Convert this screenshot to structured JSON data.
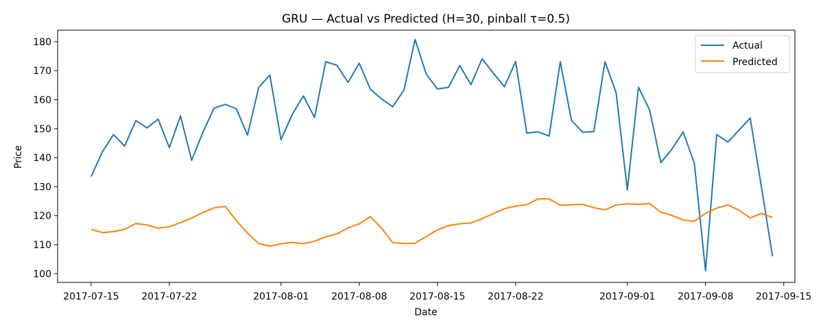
{
  "chart_data": {
    "type": "line",
    "title": "GRU — Actual vs Predicted (H=30, pinball τ=0.5)",
    "xlabel": "Date",
    "ylabel": "Price",
    "x_start": "2017-07-15",
    "x": [
      "2017-07-15",
      "2017-07-16",
      "2017-07-17",
      "2017-07-18",
      "2017-07-19",
      "2017-07-20",
      "2017-07-21",
      "2017-07-22",
      "2017-07-23",
      "2017-07-24",
      "2017-07-25",
      "2017-07-26",
      "2017-07-27",
      "2017-07-28",
      "2017-07-29",
      "2017-07-30",
      "2017-07-31",
      "2017-08-01",
      "2017-08-02",
      "2017-08-03",
      "2017-08-04",
      "2017-08-05",
      "2017-08-06",
      "2017-08-07",
      "2017-08-08",
      "2017-08-09",
      "2017-08-10",
      "2017-08-11",
      "2017-08-12",
      "2017-08-13",
      "2017-08-14",
      "2017-08-15",
      "2017-08-16",
      "2017-08-17",
      "2017-08-18",
      "2017-08-19",
      "2017-08-20",
      "2017-08-21",
      "2017-08-22",
      "2017-08-23",
      "2017-08-24",
      "2017-08-25",
      "2017-08-26",
      "2017-08-27",
      "2017-08-28",
      "2017-08-29",
      "2017-08-30",
      "2017-08-31",
      "2017-09-01",
      "2017-09-02",
      "2017-09-03",
      "2017-09-04",
      "2017-09-05",
      "2017-09-06",
      "2017-09-07",
      "2017-09-08",
      "2017-09-09",
      "2017-09-10",
      "2017-09-11",
      "2017-09-12",
      "2017-09-13",
      "2017-09-14"
    ],
    "series": [
      {
        "name": "Actual",
        "color": "#1f77b4",
        "values": [
          133.5,
          142.0,
          148.0,
          144.0,
          152.8,
          150.3,
          153.3,
          143.5,
          154.4,
          139.1,
          148.7,
          157.1,
          158.4,
          156.9,
          147.8,
          164.2,
          168.5,
          146.2,
          154.9,
          161.3,
          153.9,
          173.1,
          171.9,
          166.0,
          172.6,
          163.6,
          160.3,
          157.6,
          163.3,
          180.8,
          168.8,
          163.7,
          164.3,
          171.8,
          165.2,
          174.1,
          169.2,
          164.5,
          173.2,
          148.5,
          148.9,
          147.5,
          173.1,
          152.9,
          148.8,
          149.0,
          173.1,
          162.4,
          128.9,
          164.3,
          156.4,
          138.3,
          143.0,
          148.9,
          138.1,
          101.0,
          148.0,
          145.4,
          149.5,
          153.7,
          130.0,
          106.0
        ]
      },
      {
        "name": "Predicted",
        "color": "#ff7f0e",
        "values": [
          115.3,
          114.2,
          114.5,
          115.3,
          117.3,
          116.8,
          115.7,
          116.2,
          117.6,
          119.2,
          121.1,
          122.7,
          123.2,
          118.3,
          114.0,
          110.4,
          109.5,
          110.3,
          110.8,
          110.3,
          111.2,
          112.7,
          113.7,
          115.8,
          117.2,
          119.7,
          115.7,
          110.7,
          110.4,
          110.5,
          112.8,
          115.1,
          116.6,
          117.2,
          117.5,
          119.0,
          120.7,
          122.4,
          123.3,
          123.8,
          125.8,
          125.8,
          123.6,
          123.8,
          123.9,
          122.8,
          122.0,
          123.7,
          124.1,
          123.9,
          124.2,
          121.2,
          120.1,
          118.5,
          118.1,
          120.8,
          122.6,
          123.7,
          121.9,
          119.2,
          120.8,
          119.4
        ]
      }
    ],
    "ylim": [
      97,
      184
    ],
    "yticks": [
      100,
      110,
      120,
      130,
      140,
      150,
      160,
      170,
      180
    ],
    "xticks": [
      "2017-07-15",
      "2017-07-22",
      "2017-08-01",
      "2017-08-08",
      "2017-08-15",
      "2017-08-22",
      "2017-09-01",
      "2017-09-08",
      "2017-09-15"
    ],
    "xlim": [
      "2017-07-12",
      "2017-09-16"
    ],
    "grid": false,
    "legend": "top-right"
  }
}
